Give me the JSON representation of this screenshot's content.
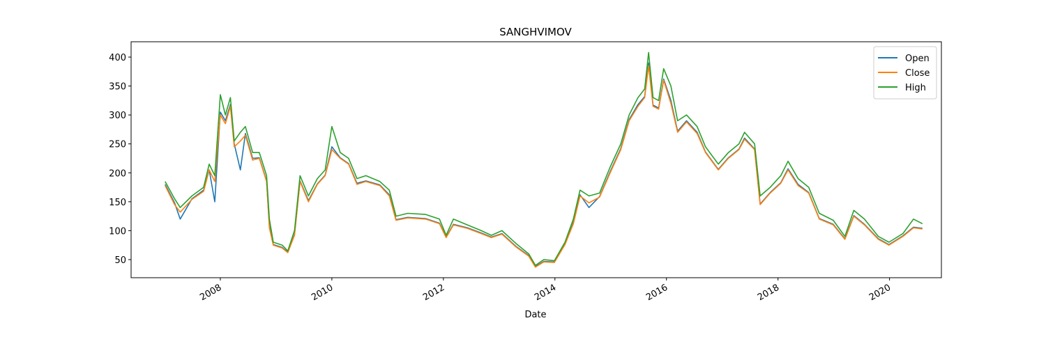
{
  "chart_data": {
    "type": "line",
    "title": "SANGHVIMOV",
    "xlabel": "Date",
    "x": [
      2007.01,
      2007.18,
      2007.28,
      2007.49,
      2007.7,
      2007.8,
      2007.9,
      2008.0,
      2008.09,
      2008.18,
      2008.25,
      2008.36,
      2008.45,
      2008.58,
      2008.7,
      2008.83,
      2008.88,
      2008.95,
      2009.11,
      2009.21,
      2009.33,
      2009.43,
      2009.58,
      2009.74,
      2009.88,
      2010.0,
      2010.15,
      2010.3,
      2010.45,
      2010.61,
      2010.86,
      2011.03,
      2011.15,
      2011.36,
      2011.68,
      2011.93,
      2012.05,
      2012.18,
      2012.43,
      2012.68,
      2012.86,
      2013.05,
      2013.3,
      2013.53,
      2013.65,
      2013.8,
      2013.99,
      2014.18,
      2014.33,
      2014.45,
      2014.61,
      2014.8,
      2014.99,
      2015.18,
      2015.33,
      2015.49,
      2015.61,
      2015.68,
      2015.76,
      2015.86,
      2015.95,
      2016.08,
      2016.2,
      2016.36,
      2016.55,
      2016.7,
      2016.93,
      2017.11,
      2017.3,
      2017.4,
      2017.58,
      2017.68,
      2017.86,
      2018.05,
      2018.18,
      2018.36,
      2018.55,
      2018.74,
      2018.99,
      2019.2,
      2019.36,
      2019.55,
      2019.8,
      2019.99,
      2020.24,
      2020.43,
      2020.59
    ],
    "series": [
      {
        "name": "Open",
        "color": "#1f77b4",
        "values": [
          180,
          148,
          120,
          155,
          170,
          205,
          150,
          305,
          290,
          318,
          250,
          205,
          268,
          225,
          226,
          186,
          108,
          76,
          71,
          63,
          93,
          186,
          152,
          181,
          196,
          245,
          226,
          216,
          182,
          186,
          179,
          162,
          119,
          123,
          121,
          113,
          89,
          111,
          105,
          96,
          89,
          95,
          73,
          57,
          38,
          47,
          46,
          77,
          114,
          162,
          140,
          159,
          202,
          242,
          292,
          318,
          332,
          390,
          317,
          312,
          362,
          325,
          272,
          290,
          270,
          236,
          206,
          226,
          241,
          260,
          241,
          146,
          166,
          183,
          207,
          180,
          166,
          121,
          111,
          86,
          126,
          111,
          86,
          76,
          91,
          106,
          104
        ]
      },
      {
        "name": "Close",
        "color": "#ff7f0e",
        "values": [
          178,
          145,
          132,
          154,
          168,
          205,
          185,
          300,
          285,
          315,
          245,
          255,
          265,
          222,
          225,
          185,
          105,
          75,
          70,
          62,
          92,
          185,
          150,
          180,
          195,
          240,
          225,
          215,
          180,
          185,
          178,
          160,
          118,
          122,
          120,
          112,
          88,
          110,
          104,
          95,
          88,
          94,
          72,
          56,
          37,
          46,
          45,
          76,
          112,
          160,
          148,
          158,
          200,
          240,
          290,
          315,
          330,
          385,
          315,
          310,
          360,
          320,
          270,
          288,
          268,
          235,
          205,
          225,
          240,
          258,
          240,
          145,
          165,
          182,
          205,
          178,
          165,
          120,
          110,
          85,
          125,
          110,
          85,
          75,
          90,
          105,
          103
        ]
      },
      {
        "name": "High",
        "color": "#2ca02c",
        "values": [
          185,
          155,
          140,
          160,
          175,
          215,
          195,
          335,
          300,
          330,
          255,
          270,
          280,
          235,
          235,
          195,
          120,
          80,
          75,
          65,
          100,
          195,
          160,
          190,
          205,
          280,
          235,
          225,
          190,
          195,
          185,
          170,
          125,
          130,
          128,
          120,
          92,
          120,
          110,
          100,
          92,
          100,
          78,
          60,
          40,
          50,
          48,
          80,
          120,
          170,
          160,
          165,
          210,
          250,
          300,
          330,
          345,
          408,
          330,
          325,
          380,
          350,
          290,
          300,
          280,
          245,
          215,
          235,
          250,
          270,
          250,
          160,
          175,
          195,
          220,
          190,
          175,
          130,
          118,
          90,
          135,
          120,
          90,
          80,
          95,
          120,
          112
        ]
      }
    ],
    "xlim": [
      2006.4,
      2020.93
    ],
    "xticks": [
      2008,
      2010,
      2012,
      2014,
      2016,
      2018,
      2020
    ],
    "ylim": [
      18.7,
      426.5
    ],
    "yticks": [
      50,
      100,
      150,
      200,
      250,
      300,
      350,
      400
    ],
    "legend": "upper right",
    "grid": false
  }
}
